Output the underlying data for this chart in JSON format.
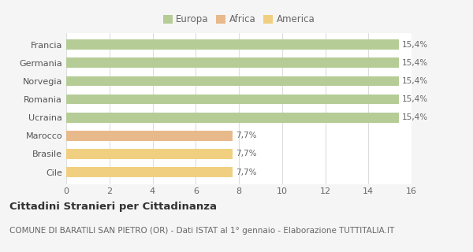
{
  "categories": [
    "Francia",
    "Germania",
    "Norvegia",
    "Romania",
    "Ucraina",
    "Marocco",
    "Brasile",
    "Cile"
  ],
  "values": [
    15.4,
    15.4,
    15.4,
    15.4,
    15.4,
    7.7,
    7.7,
    7.7
  ],
  "bar_colors": [
    "#b5cc96",
    "#b5cc96",
    "#b5cc96",
    "#b5cc96",
    "#b5cc96",
    "#e8b98a",
    "#f0d080",
    "#f0d080"
  ],
  "labels": [
    "15,4%",
    "15,4%",
    "15,4%",
    "15,4%",
    "15,4%",
    "7,7%",
    "7,7%",
    "7,7%"
  ],
  "legend_labels": [
    "Europa",
    "Africa",
    "America"
  ],
  "legend_colors": [
    "#b5cc96",
    "#e8b98a",
    "#f0d080"
  ],
  "title": "Cittadini Stranieri per Cittadinanza",
  "subtitle": "COMUNE DI BARATILI SAN PIETRO (OR) - Dati ISTAT al 1° gennaio - Elaborazione TUTTITALIA.IT",
  "xlim": [
    0,
    16
  ],
  "xticks": [
    0,
    2,
    4,
    6,
    8,
    10,
    12,
    14,
    16
  ],
  "background_color": "#f5f5f5",
  "plot_bg_color": "#ffffff",
  "grid_color": "#dddddd",
  "title_fontsize": 9.5,
  "subtitle_fontsize": 7.5,
  "label_fontsize": 7.5,
  "tick_fontsize": 8,
  "legend_fontsize": 8.5
}
